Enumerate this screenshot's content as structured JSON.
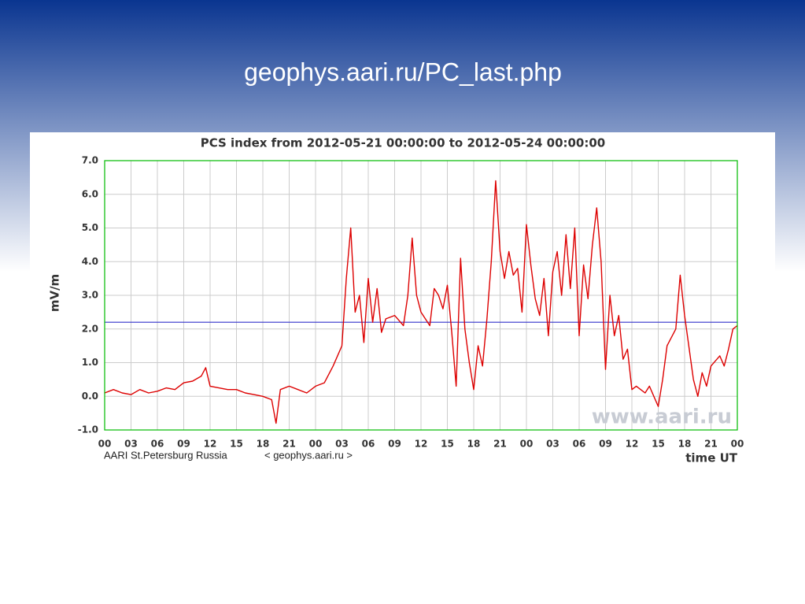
{
  "slide_title": "geophys.aari.ru/PC_last.php",
  "chart_data": {
    "type": "line",
    "title": "PCS index from 2012-05-21 00:00:00 to 2012-05-24 00:00:00",
    "ylabel": "mV/m",
    "xlabel": "time UT",
    "footer_left": "AARI St.Petersburg Russia",
    "footer_link": "< geophys.aari.ru >",
    "watermark": "www.aari.ru",
    "color": "#dd0000",
    "grid": true,
    "reference_line": {
      "value": 2.2,
      "color": "#3333cc"
    },
    "xlim": [
      0,
      72
    ],
    "ylim": [
      -1,
      7
    ],
    "xticks": [
      {
        "value": 0,
        "label": "00"
      },
      {
        "value": 3,
        "label": "03"
      },
      {
        "value": 6,
        "label": "06"
      },
      {
        "value": 9,
        "label": "09"
      },
      {
        "value": 12,
        "label": "12"
      },
      {
        "value": 15,
        "label": "15"
      },
      {
        "value": 18,
        "label": "18"
      },
      {
        "value": 21,
        "label": "21"
      },
      {
        "value": 24,
        "label": "00"
      },
      {
        "value": 27,
        "label": "03"
      },
      {
        "value": 30,
        "label": "06"
      },
      {
        "value": 33,
        "label": "09"
      },
      {
        "value": 36,
        "label": "12"
      },
      {
        "value": 39,
        "label": "15"
      },
      {
        "value": 42,
        "label": "18"
      },
      {
        "value": 45,
        "label": "21"
      },
      {
        "value": 48,
        "label": "00"
      },
      {
        "value": 51,
        "label": "03"
      },
      {
        "value": 54,
        "label": "06"
      },
      {
        "value": 57,
        "label": "09"
      },
      {
        "value": 60,
        "label": "12"
      },
      {
        "value": 63,
        "label": "15"
      },
      {
        "value": 66,
        "label": "18"
      },
      {
        "value": 69,
        "label": "21"
      },
      {
        "value": 72,
        "label": "00"
      }
    ],
    "yticks": [
      {
        "value": -1,
        "label": "-1.0"
      },
      {
        "value": 0,
        "label": "0.0"
      },
      {
        "value": 1,
        "label": "1.0"
      },
      {
        "value": 2,
        "label": "2.0"
      },
      {
        "value": 3,
        "label": "3.0"
      },
      {
        "value": 4,
        "label": "4.0"
      },
      {
        "value": 5,
        "label": "5.0"
      },
      {
        "value": 6,
        "label": "6.0"
      },
      {
        "value": 7,
        "label": "7.0"
      }
    ],
    "x": [
      0,
      1,
      2,
      3,
      4,
      5,
      6,
      7,
      8,
      9,
      10,
      11,
      11.5,
      12,
      13,
      14,
      15,
      16,
      17,
      18,
      19,
      19.5,
      20,
      21,
      22,
      23,
      24,
      25,
      26,
      27,
      27.5,
      28,
      28.5,
      29,
      29.5,
      30,
      30.5,
      31,
      31.5,
      32,
      33,
      34,
      34.5,
      35,
      35.5,
      36,
      37,
      37.5,
      38,
      38.5,
      39,
      39.5,
      40,
      40.5,
      41,
      41.5,
      42,
      42.5,
      43,
      43.5,
      44,
      44.5,
      45,
      45.5,
      46,
      46.5,
      47,
      47.5,
      48,
      48.5,
      49,
      49.5,
      50,
      50.5,
      51,
      51.5,
      52,
      52.5,
      53,
      53.5,
      54,
      54.5,
      55,
      55.5,
      56,
      56.5,
      57,
      57.5,
      58,
      58.5,
      59,
      59.5,
      60,
      60.5,
      61,
      61.5,
      62,
      62.5,
      63,
      63.5,
      64,
      65,
      65.5,
      66,
      67,
      67.5,
      68,
      68.5,
      69,
      70,
      70.5,
      71,
      71.5,
      72
    ],
    "values": [
      0.1,
      0.2,
      0.1,
      0.05,
      0.2,
      0.1,
      0.15,
      0.25,
      0.2,
      0.4,
      0.45,
      0.6,
      0.85,
      0.3,
      0.25,
      0.2,
      0.2,
      0.1,
      0.05,
      0.0,
      -0.1,
      -0.8,
      0.2,
      0.3,
      0.2,
      0.1,
      0.3,
      0.4,
      0.9,
      1.5,
      3.5,
      5.0,
      2.5,
      3.0,
      1.6,
      3.5,
      2.2,
      3.2,
      1.9,
      2.3,
      2.4,
      2.1,
      3.0,
      4.7,
      3.0,
      2.5,
      2.1,
      3.2,
      3.0,
      2.6,
      3.3,
      1.9,
      0.3,
      4.1,
      2.0,
      1.0,
      0.2,
      1.5,
      0.9,
      2.3,
      4.0,
      6.4,
      4.3,
      3.5,
      4.3,
      3.6,
      3.8,
      2.5,
      5.1,
      3.9,
      2.9,
      2.4,
      3.5,
      1.8,
      3.7,
      4.3,
      3.0,
      4.8,
      3.2,
      5.0,
      1.8,
      3.9,
      2.9,
      4.5,
      5.6,
      4.0,
      0.8,
      3.0,
      1.8,
      2.4,
      1.1,
      1.4,
      0.2,
      0.3,
      0.2,
      0.1,
      0.3,
      0.0,
      -0.3,
      0.5,
      1.5,
      2.0,
      3.6,
      2.4,
      0.5,
      0.0,
      0.7,
      0.3,
      0.9,
      1.2,
      0.9,
      1.4,
      2.0,
      2.1
    ]
  }
}
